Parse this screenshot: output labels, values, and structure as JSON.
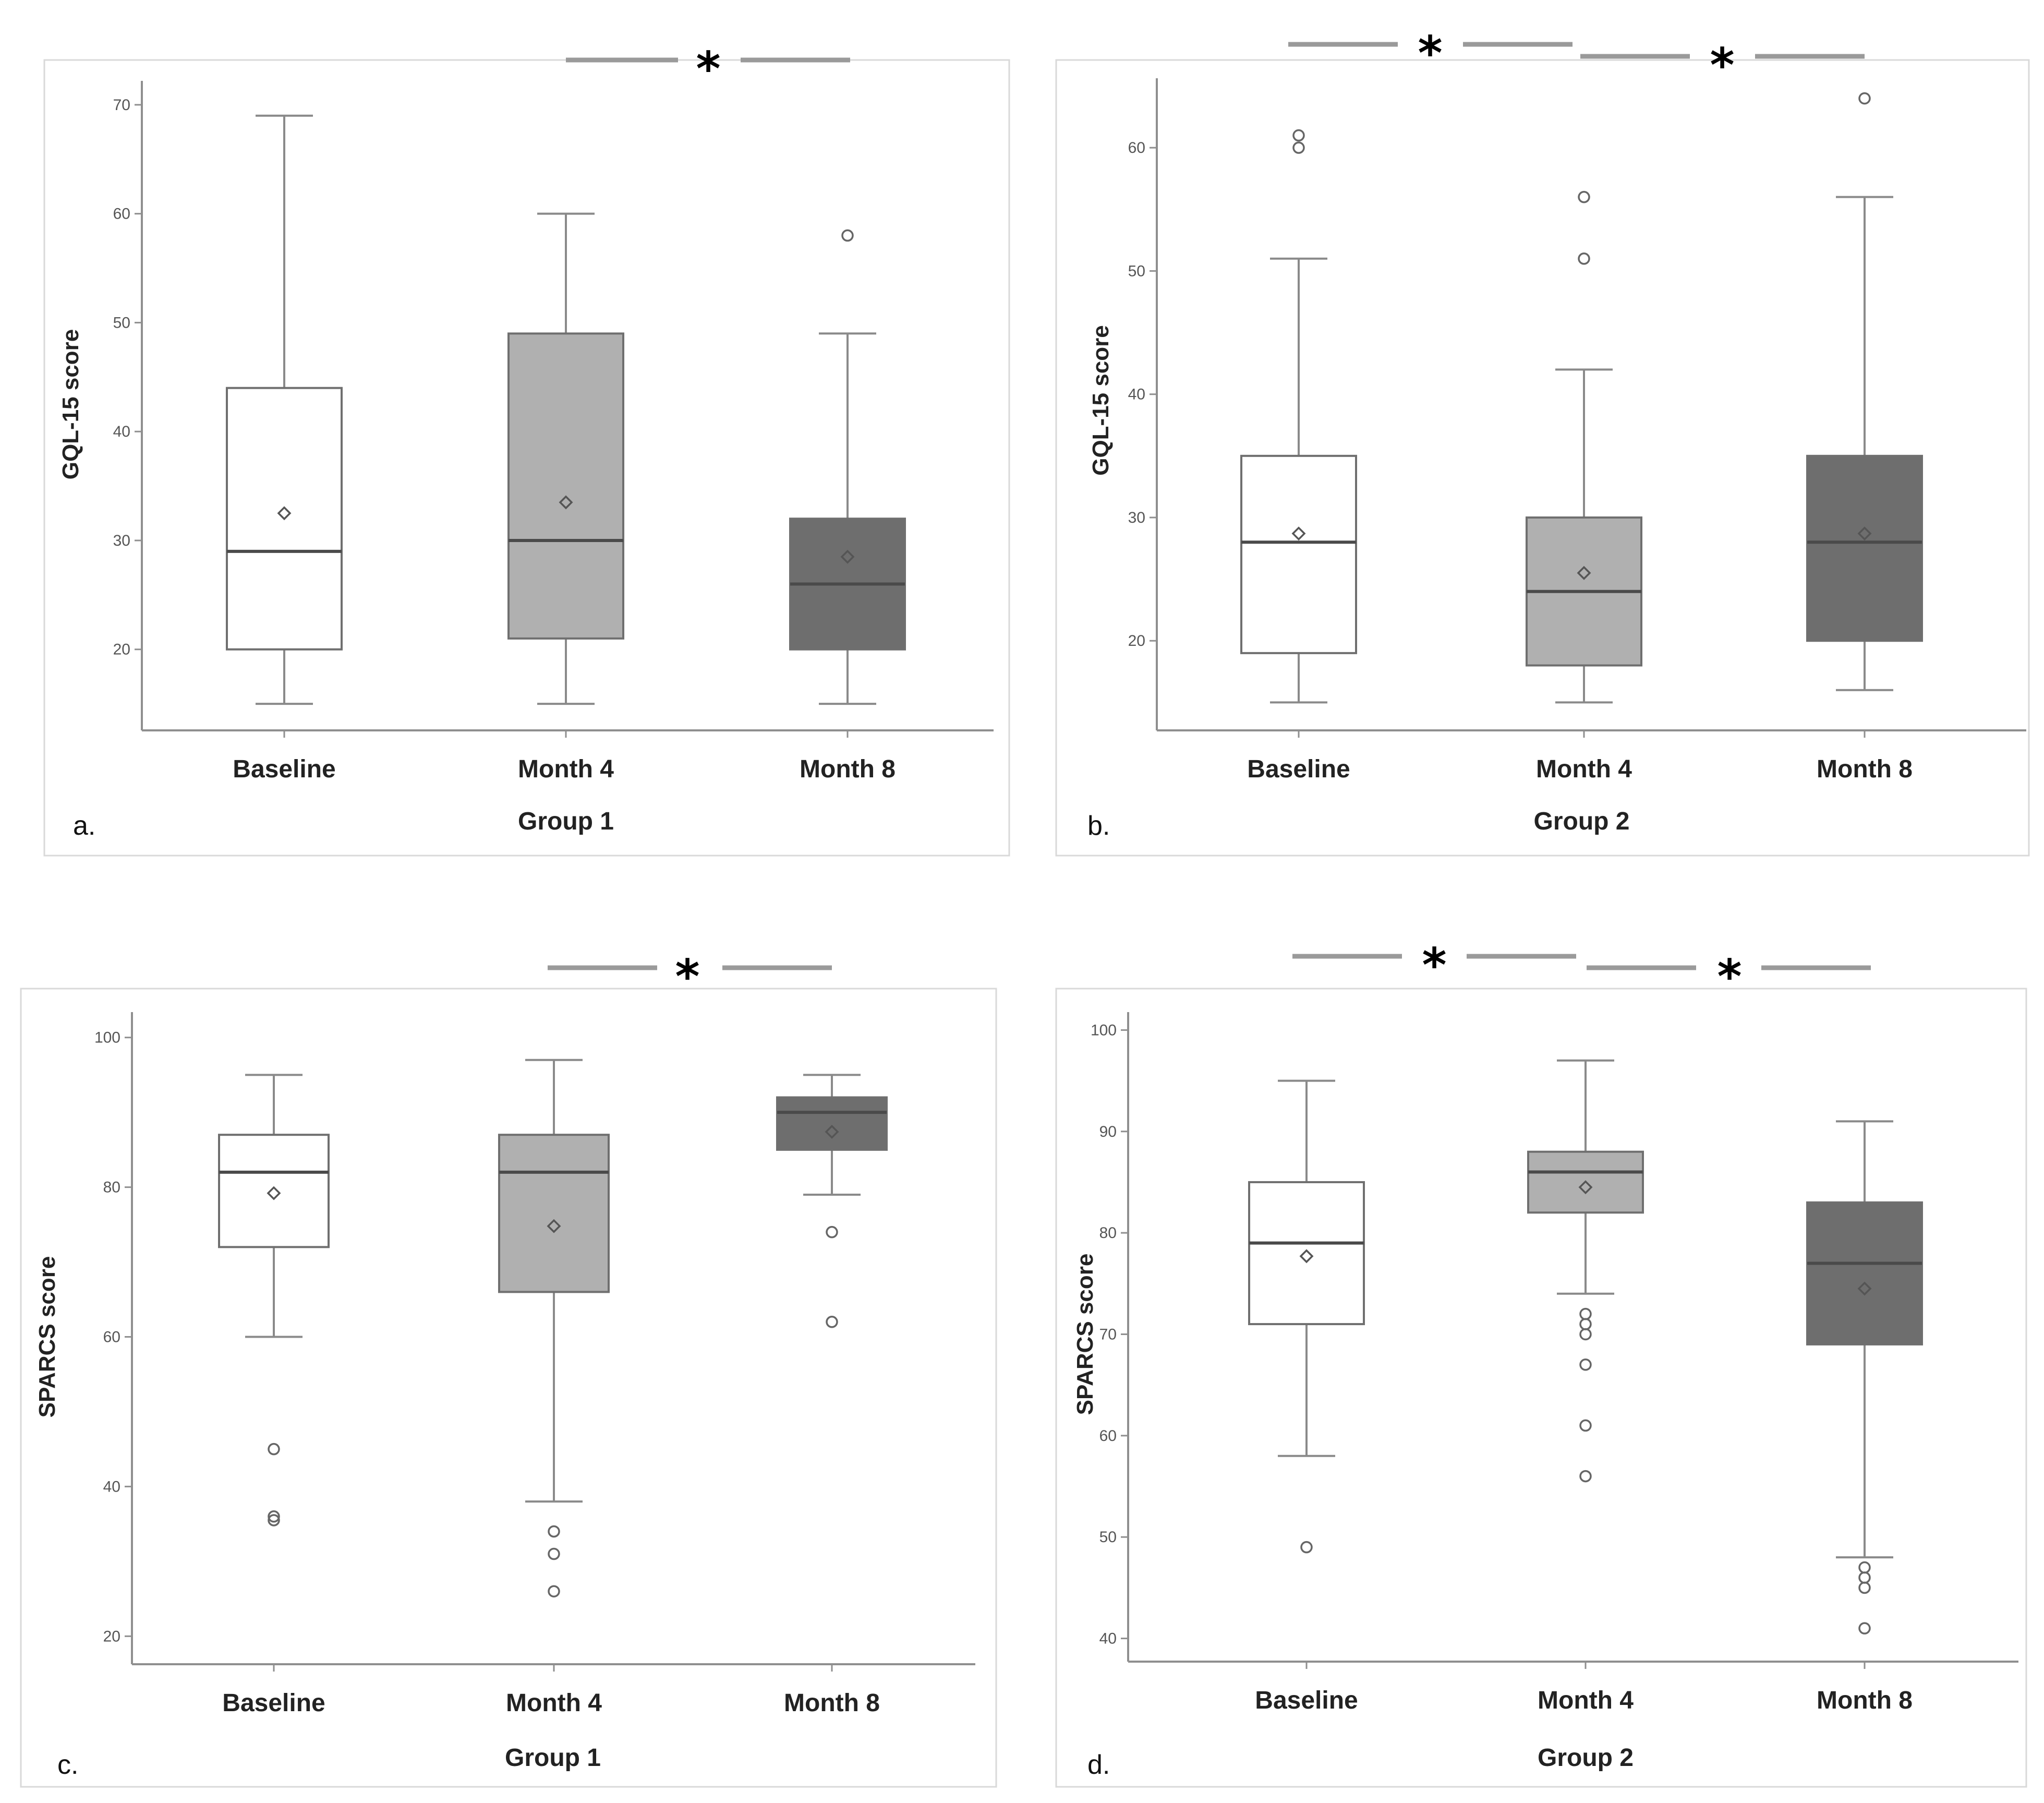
{
  "figure": {
    "panel_labels": [
      "a.",
      "b.",
      "c.",
      "d."
    ],
    "significance_symbol": "*"
  },
  "colors": {
    "Baseline": "#ffffff",
    "Month 4": "#b0b0b0",
    "Month 8": "#6e6e6e"
  },
  "chart_data": [
    {
      "type": "boxplot",
      "panel": "a.",
      "title": "",
      "xlabel": "Group 1",
      "ylabel": "GQL-15 score",
      "ylim": [
        14,
        71
      ],
      "yticks": [
        20,
        30,
        40,
        50,
        60,
        70
      ],
      "categories": [
        "Baseline",
        "Month 4",
        "Month 8"
      ],
      "boxes": [
        {
          "category": "Baseline",
          "min": 15,
          "q1": 20,
          "median": 29,
          "q3": 44,
          "max": 69,
          "mean": 32.5,
          "outliers": []
        },
        {
          "category": "Month 4",
          "min": 15,
          "q1": 21,
          "median": 30,
          "q3": 49,
          "max": 60,
          "mean": 33.5,
          "outliers": []
        },
        {
          "category": "Month 8",
          "min": 15,
          "q1": 20,
          "median": 26,
          "q3": 32,
          "max": 49,
          "mean": 28.5,
          "outliers": [
            58
          ]
        }
      ],
      "significance": [
        {
          "from": "Month 4",
          "to": "Month 8",
          "label": "*"
        }
      ]
    },
    {
      "type": "boxplot",
      "panel": "b.",
      "title": "",
      "xlabel": "Group 2",
      "ylabel": "GQL-15 score",
      "ylim": [
        14,
        65
      ],
      "yticks": [
        20,
        30,
        40,
        50,
        60
      ],
      "categories": [
        "Baseline",
        "Month 4",
        "Month 8"
      ],
      "boxes": [
        {
          "category": "Baseline",
          "min": 15,
          "q1": 19,
          "median": 28,
          "q3": 35,
          "max": 51,
          "mean": 28.7,
          "outliers": [
            60,
            61
          ]
        },
        {
          "category": "Month 4",
          "min": 15,
          "q1": 18,
          "median": 24,
          "q3": 30,
          "max": 42,
          "mean": 25.5,
          "outliers": [
            51,
            56
          ]
        },
        {
          "category": "Month 8",
          "min": 16,
          "q1": 20,
          "median": 28,
          "q3": 35,
          "max": 56,
          "mean": 28.7,
          "outliers": [
            64
          ]
        }
      ],
      "significance": [
        {
          "from": "Baseline",
          "to": "Month 4",
          "label": "*"
        },
        {
          "from": "Month 4",
          "to": "Month 8",
          "label": "*"
        }
      ]
    },
    {
      "type": "boxplot",
      "panel": "c.",
      "title": "",
      "xlabel": "Group 1",
      "ylabel": "SPARCS  score",
      "ylim": [
        18,
        102
      ],
      "yticks": [
        20,
        40,
        60,
        80,
        100
      ],
      "categories": [
        "Baseline",
        "Month 4",
        "Month 8"
      ],
      "boxes": [
        {
          "category": "Baseline",
          "min": 60,
          "q1": 72,
          "median": 82,
          "q3": 87,
          "max": 95,
          "mean": 79.2,
          "outliers": [
            45,
            36,
            35.5
          ]
        },
        {
          "category": "Month 4",
          "min": 38,
          "q1": 66,
          "median": 82,
          "q3": 87,
          "max": 97,
          "mean": 74.8,
          "outliers": [
            34,
            31,
            26
          ]
        },
        {
          "category": "Month 8",
          "min": 79,
          "q1": 85,
          "median": 90,
          "q3": 92,
          "max": 95,
          "mean": 87.4,
          "outliers": [
            74,
            62
          ]
        }
      ],
      "significance": [
        {
          "from": "Month 4",
          "to": "Month 8",
          "label": "*"
        }
      ]
    },
    {
      "type": "boxplot",
      "panel": "d.",
      "title": "",
      "xlabel": "Group 2",
      "ylabel": "SPARCS  score",
      "ylim": [
        39,
        101
      ],
      "yticks": [
        40,
        50,
        60,
        70,
        80,
        90,
        100
      ],
      "categories": [
        "Baseline",
        "Month 4",
        "Month 8"
      ],
      "boxes": [
        {
          "category": "Baseline",
          "min": 58,
          "q1": 71,
          "median": 79,
          "q3": 85,
          "max": 95,
          "mean": 77.7,
          "outliers": [
            49
          ]
        },
        {
          "category": "Month 4",
          "min": 74,
          "q1": 82,
          "median": 86,
          "q3": 88,
          "max": 97,
          "mean": 84.5,
          "outliers": [
            72,
            71,
            70,
            67,
            61,
            56
          ]
        },
        {
          "category": "Month 8",
          "min": 48,
          "q1": 69,
          "median": 77,
          "q3": 83,
          "max": 91,
          "mean": 74.5,
          "outliers": [
            47,
            46,
            45,
            41
          ]
        }
      ],
      "significance": [
        {
          "from": "Baseline",
          "to": "Month 4",
          "label": "*"
        },
        {
          "from": "Month 4",
          "to": "Month 8",
          "label": "*"
        }
      ]
    }
  ]
}
